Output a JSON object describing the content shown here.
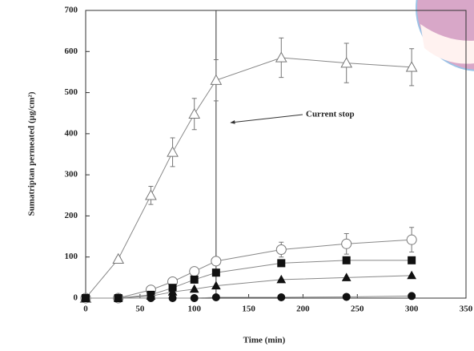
{
  "chart_data": {
    "type": "line",
    "x_label": "Time (min)",
    "y_label": "Sumatriptan permeated (µg/cm²)",
    "x": [
      0,
      30,
      60,
      80,
      100,
      120,
      180,
      240,
      300
    ],
    "series": [
      {
        "color": "#777777",
        "marker": "triangle",
        "filled": false,
        "values": [
          0,
          95,
          250,
          355,
          448,
          530,
          585,
          572,
          562
        ],
        "errors": [
          0,
          5,
          22,
          35,
          38,
          50,
          48,
          48,
          45
        ]
      },
      {
        "color": "#777777",
        "marker": "circle",
        "filled": false,
        "values": [
          0,
          0,
          20,
          40,
          65,
          90,
          118,
          132,
          142
        ],
        "errors": [
          0,
          0,
          5,
          6,
          8,
          10,
          18,
          25,
          30
        ]
      },
      {
        "color": "#111111",
        "marker": "square",
        "filled": true,
        "values": [
          0,
          0,
          8,
          25,
          45,
          62,
          85,
          92,
          92
        ]
      },
      {
        "color": "#111111",
        "marker": "triangle",
        "filled": true,
        "values": [
          0,
          0,
          5,
          15,
          22,
          30,
          45,
          50,
          55
        ]
      },
      {
        "color": "#111111",
        "marker": "circle",
        "filled": true,
        "values": [
          0,
          0,
          0,
          0,
          0,
          2,
          2,
          3,
          5
        ]
      }
    ],
    "xlim": [
      0,
      350
    ],
    "xticks": [
      0,
      50,
      100,
      150,
      200,
      250,
      300,
      350
    ],
    "ylim": [
      0,
      700
    ],
    "yticks": [
      0,
      100,
      200,
      300,
      400,
      500,
      600,
      700
    ],
    "reference_x": 120,
    "annotation": "Current stop"
  }
}
